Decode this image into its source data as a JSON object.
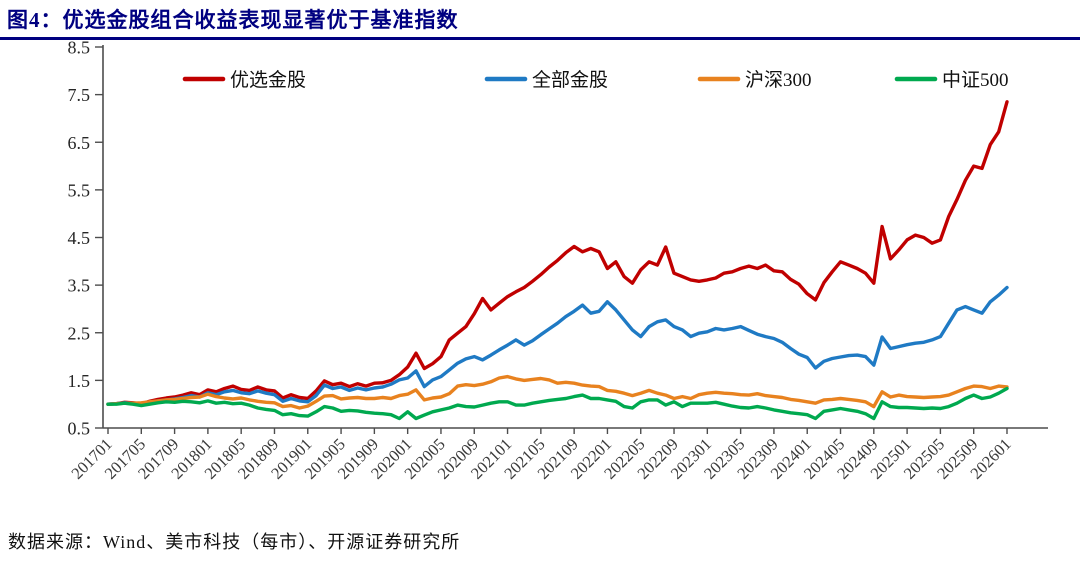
{
  "page": {
    "title": "图4：优选金股组合收益表现显著优于基准指数",
    "source": "数据来源：Wind、美市科技（每市）、开源证券研究所"
  },
  "colors": {
    "title_navy": "#000080",
    "axis": "#4d4d4d",
    "background": "#ffffff"
  },
  "chart_data": {
    "type": "line",
    "title": "优选金股组合收益表现显著优于基准指数",
    "xlabel": "",
    "ylabel": "",
    "ylim": [
      0.5,
      8.5
    ],
    "y_ticks": [
      0.5,
      1.5,
      2.5,
      3.5,
      4.5,
      5.5,
      6.5,
      7.5,
      8.5
    ],
    "grid": false,
    "legend_position": "top",
    "x_unit": "month",
    "x_start": "201701",
    "x_end": "202601",
    "x_tick_labels": [
      "201701",
      "201705",
      "201709",
      "201801",
      "201805",
      "201809",
      "201901",
      "201905",
      "201909",
      "202001",
      "202005",
      "202009",
      "202101",
      "202105",
      "202109",
      "202201",
      "202205",
      "202209",
      "202301",
      "202305",
      "202309",
      "202401",
      "202405",
      "202409",
      "202501",
      "202505",
      "202509",
      "202601"
    ],
    "series": [
      {
        "name": "优选金股",
        "color": "#c00000",
        "values": [
          1.0,
          1.01,
          1.04,
          1.03,
          1.01,
          1.06,
          1.1,
          1.13,
          1.15,
          1.19,
          1.24,
          1.2,
          1.3,
          1.26,
          1.33,
          1.38,
          1.31,
          1.29,
          1.36,
          1.3,
          1.28,
          1.13,
          1.2,
          1.14,
          1.12,
          1.28,
          1.49,
          1.41,
          1.44,
          1.37,
          1.43,
          1.38,
          1.44,
          1.45,
          1.5,
          1.62,
          1.78,
          2.07,
          1.75,
          1.85,
          2.0,
          2.35,
          2.49,
          2.63,
          2.9,
          3.22,
          2.98,
          3.12,
          3.26,
          3.36,
          3.45,
          3.58,
          3.72,
          3.88,
          4.02,
          4.18,
          4.31,
          4.2,
          4.27,
          4.2,
          3.85,
          3.99,
          3.68,
          3.54,
          3.82,
          3.99,
          3.92,
          4.3,
          3.75,
          3.68,
          3.61,
          3.58,
          3.61,
          3.65,
          3.75,
          3.78,
          3.85,
          3.9,
          3.85,
          3.92,
          3.8,
          3.78,
          3.62,
          3.52,
          3.32,
          3.19,
          3.55,
          3.78,
          3.99,
          3.92,
          3.85,
          3.75,
          3.54,
          4.73,
          4.05,
          4.24,
          4.45,
          4.55,
          4.5,
          4.38,
          4.45,
          4.94,
          5.3,
          5.7,
          6.0,
          5.95,
          6.45,
          6.72,
          7.35
        ]
      },
      {
        "name": "全部金股",
        "color": "#1f7ac4",
        "values": [
          1.0,
          1.01,
          1.03,
          1.02,
          1.0,
          1.04,
          1.07,
          1.09,
          1.11,
          1.14,
          1.18,
          1.15,
          1.24,
          1.2,
          1.26,
          1.29,
          1.24,
          1.22,
          1.28,
          1.23,
          1.2,
          1.06,
          1.12,
          1.07,
          1.05,
          1.18,
          1.4,
          1.33,
          1.36,
          1.29,
          1.34,
          1.3,
          1.34,
          1.36,
          1.42,
          1.51,
          1.55,
          1.7,
          1.37,
          1.51,
          1.58,
          1.72,
          1.86,
          1.95,
          2.0,
          1.93,
          2.03,
          2.14,
          2.24,
          2.35,
          2.24,
          2.33,
          2.46,
          2.58,
          2.7,
          2.84,
          2.95,
          3.08,
          2.91,
          2.95,
          3.15,
          2.98,
          2.77,
          2.56,
          2.42,
          2.63,
          2.73,
          2.77,
          2.63,
          2.56,
          2.42,
          2.49,
          2.52,
          2.59,
          2.56,
          2.59,
          2.63,
          2.55,
          2.47,
          2.42,
          2.38,
          2.3,
          2.17,
          2.05,
          1.98,
          1.76,
          1.9,
          1.96,
          1.99,
          2.02,
          2.03,
          2.0,
          1.82,
          2.41,
          2.17,
          2.21,
          2.25,
          2.28,
          2.3,
          2.35,
          2.42,
          2.7,
          2.98,
          3.05,
          2.98,
          2.91,
          3.15,
          3.29,
          3.45
        ]
      },
      {
        "name": "沪深300",
        "color": "#e8821f",
        "values": [
          1.0,
          1.01,
          1.02,
          1.02,
          1.03,
          1.05,
          1.07,
          1.09,
          1.1,
          1.12,
          1.14,
          1.15,
          1.21,
          1.16,
          1.13,
          1.11,
          1.13,
          1.09,
          1.06,
          1.04,
          1.03,
          0.95,
          0.97,
          0.92,
          0.96,
          1.06,
          1.17,
          1.18,
          1.11,
          1.13,
          1.14,
          1.12,
          1.12,
          1.14,
          1.12,
          1.18,
          1.21,
          1.3,
          1.09,
          1.13,
          1.15,
          1.22,
          1.38,
          1.41,
          1.39,
          1.42,
          1.47,
          1.55,
          1.58,
          1.53,
          1.5,
          1.52,
          1.54,
          1.51,
          1.44,
          1.46,
          1.44,
          1.4,
          1.38,
          1.37,
          1.29,
          1.27,
          1.23,
          1.18,
          1.23,
          1.29,
          1.23,
          1.19,
          1.12,
          1.16,
          1.12,
          1.2,
          1.23,
          1.25,
          1.23,
          1.22,
          1.2,
          1.19,
          1.22,
          1.18,
          1.16,
          1.14,
          1.1,
          1.08,
          1.05,
          1.02,
          1.09,
          1.1,
          1.12,
          1.1,
          1.08,
          1.05,
          0.95,
          1.26,
          1.15,
          1.19,
          1.16,
          1.15,
          1.14,
          1.15,
          1.16,
          1.19,
          1.26,
          1.33,
          1.38,
          1.37,
          1.33,
          1.38,
          1.36
        ]
      },
      {
        "name": "中证500",
        "color": "#00a94f",
        "values": [
          1.0,
          1.0,
          1.02,
          1.0,
          0.97,
          1.0,
          1.03,
          1.05,
          1.04,
          1.06,
          1.05,
          1.03,
          1.07,
          1.02,
          1.04,
          1.01,
          1.02,
          0.98,
          0.92,
          0.89,
          0.87,
          0.78,
          0.8,
          0.76,
          0.75,
          0.84,
          0.95,
          0.92,
          0.85,
          0.87,
          0.86,
          0.83,
          0.81,
          0.8,
          0.78,
          0.7,
          0.84,
          0.7,
          0.77,
          0.84,
          0.88,
          0.92,
          0.98,
          0.95,
          0.94,
          0.98,
          1.02,
          1.05,
          1.05,
          0.98,
          0.98,
          1.02,
          1.05,
          1.08,
          1.1,
          1.12,
          1.16,
          1.19,
          1.12,
          1.12,
          1.09,
          1.06,
          0.95,
          0.92,
          1.05,
          1.09,
          1.09,
          0.98,
          1.05,
          0.95,
          1.02,
          1.02,
          1.02,
          1.04,
          1.0,
          0.96,
          0.93,
          0.92,
          0.95,
          0.92,
          0.88,
          0.85,
          0.82,
          0.8,
          0.78,
          0.7,
          0.85,
          0.88,
          0.91,
          0.88,
          0.85,
          0.8,
          0.7,
          1.05,
          0.95,
          0.93,
          0.93,
          0.92,
          0.91,
          0.92,
          0.91,
          0.95,
          1.02,
          1.12,
          1.19,
          1.12,
          1.15,
          1.23,
          1.33
        ]
      }
    ]
  }
}
